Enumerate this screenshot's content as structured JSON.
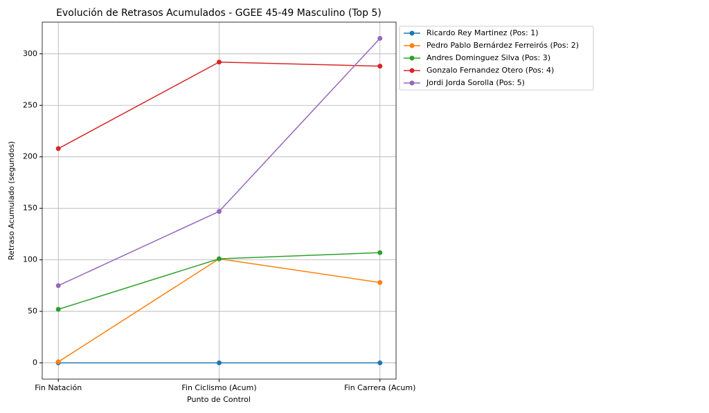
{
  "chart_data": {
    "type": "line",
    "title": "Evolución de Retrasos Acumulados - GGEE 45-49 Masculino (Top 5)",
    "x_label": "Punto de Control",
    "y_label": "Retraso Acumulado (segundos)",
    "categories": [
      "Fin Natación",
      "Fin Ciclismo (Acum)",
      "Fin Carrera (Acum)"
    ],
    "series": [
      {
        "name": "Ricardo Rey Martinez (Pos: 1)",
        "color": "#1f77b4",
        "values": [
          0,
          0,
          0
        ]
      },
      {
        "name": "Pedro Pablo Bernárdez Ferreirós (Pos: 2)",
        "color": "#ff7f0e",
        "values": [
          1,
          101,
          78
        ]
      },
      {
        "name": "Andres Dominguez Silva (Pos: 3)",
        "color": "#2ca02c",
        "values": [
          52,
          101,
          107
        ]
      },
      {
        "name": "Gonzalo Fernandez Otero (Pos: 4)",
        "color": "#d62728",
        "values": [
          208,
          292,
          288
        ]
      },
      {
        "name": "Jordi Jorda Sorolla (Pos: 5)",
        "color": "#9467bd",
        "values": [
          75,
          147,
          315
        ]
      }
    ],
    "ylim": [
      -15.75,
      330.75
    ],
    "yticks": [
      0,
      50,
      100,
      150,
      200,
      250,
      300
    ],
    "grid": true,
    "legend": "outside-right"
  }
}
